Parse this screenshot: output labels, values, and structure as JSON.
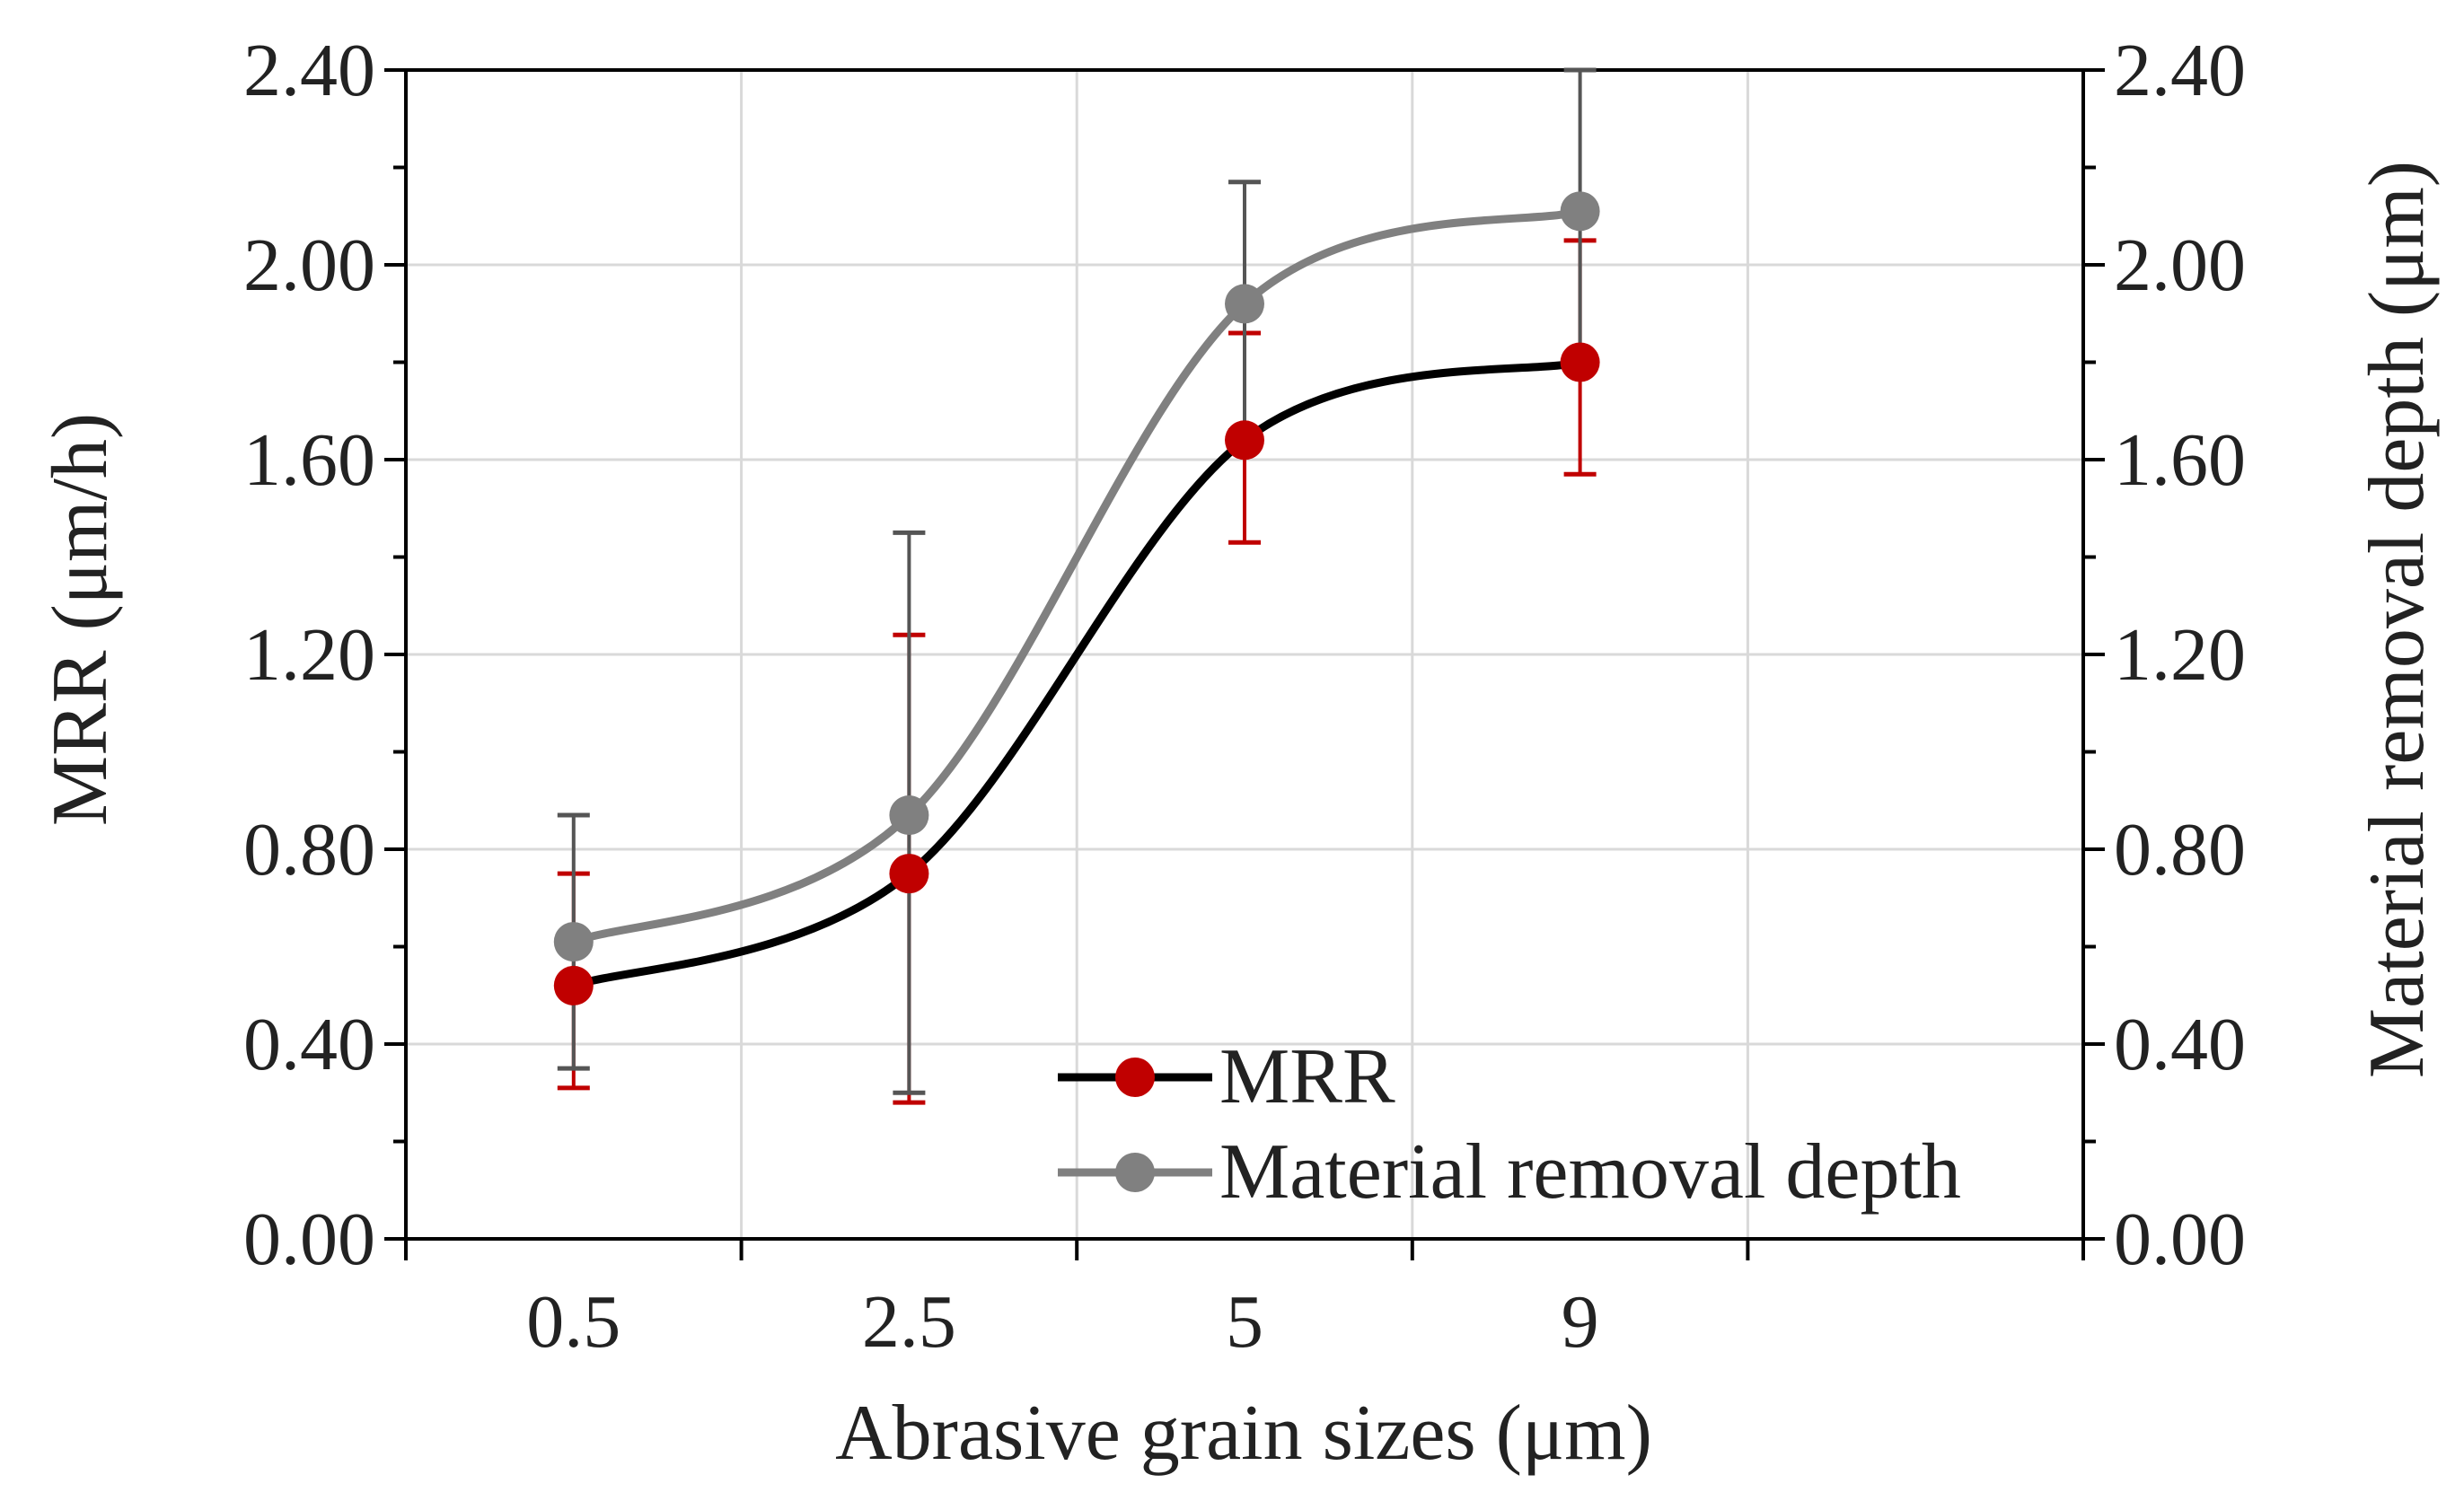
{
  "chart_data": {
    "type": "line",
    "xlabel": "Abrasive grain sizes (μm)",
    "ylabel": "MRR (μm/h)",
    "y2label": "Material removal depth (μm)",
    "categories": [
      "0.5",
      "2.5",
      "5",
      "9"
    ],
    "ylim": [
      0,
      2.4
    ],
    "y2lim": [
      0,
      2.4
    ],
    "yticks": [
      "0.00",
      "0.40",
      "0.80",
      "1.20",
      "1.60",
      "2.00",
      "2.40"
    ],
    "y2ticks": [
      "0.00",
      "0.40",
      "0.80",
      "1.20",
      "1.60",
      "2.00",
      "2.40"
    ],
    "grid": true,
    "legend_position": "bottom-center",
    "series": [
      {
        "name": "MRR",
        "axis": "left",
        "values": [
          0.52,
          0.75,
          1.64,
          1.8
        ],
        "err_low": [
          0.31,
          0.28,
          1.43,
          1.57
        ],
        "err_high": [
          0.75,
          1.24,
          1.86,
          2.05
        ],
        "line_color": "#000000",
        "marker_color": "#c00000",
        "error_color": "#c00000"
      },
      {
        "name": "Material removal depth",
        "axis": "right",
        "values": [
          0.61,
          0.87,
          1.92,
          2.11
        ],
        "err_low": [
          0.35,
          0.3,
          1.66,
          1.81
        ],
        "err_high": [
          0.87,
          1.45,
          2.17,
          2.4
        ],
        "line_color": "#808080",
        "marker_color": "#808080",
        "error_color": "#555555"
      }
    ]
  }
}
